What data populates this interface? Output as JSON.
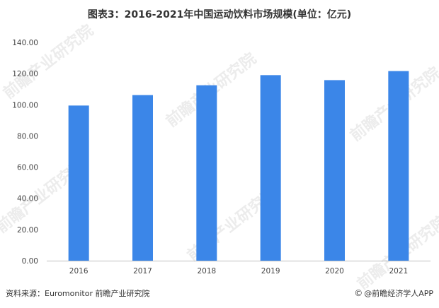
{
  "chart_data": {
    "type": "bar",
    "title": "图表3：2016-2021年中国运动饮料市场规模(单位：亿元)",
    "categories": [
      "2016",
      "2017",
      "2018",
      "2019",
      "2020",
      "2021"
    ],
    "values": [
      99.5,
      106.2,
      112.5,
      119.0,
      115.8,
      121.6
    ],
    "ylim": [
      0,
      140
    ],
    "yticks": [
      "0.00",
      "20.00",
      "40.00",
      "60.00",
      "80.00",
      "100.00",
      "120.00",
      "140.00"
    ],
    "bar_color": "#3b86e8",
    "grid": false,
    "legend": "none"
  },
  "footer": {
    "source": "资料来源：Euromonitor 前瞻产业研究院",
    "credit": "@前瞻经济学人APP",
    "credit_icon": "qianzhan-logo-icon"
  },
  "watermark": {
    "text": "前瞻产业研究院"
  }
}
